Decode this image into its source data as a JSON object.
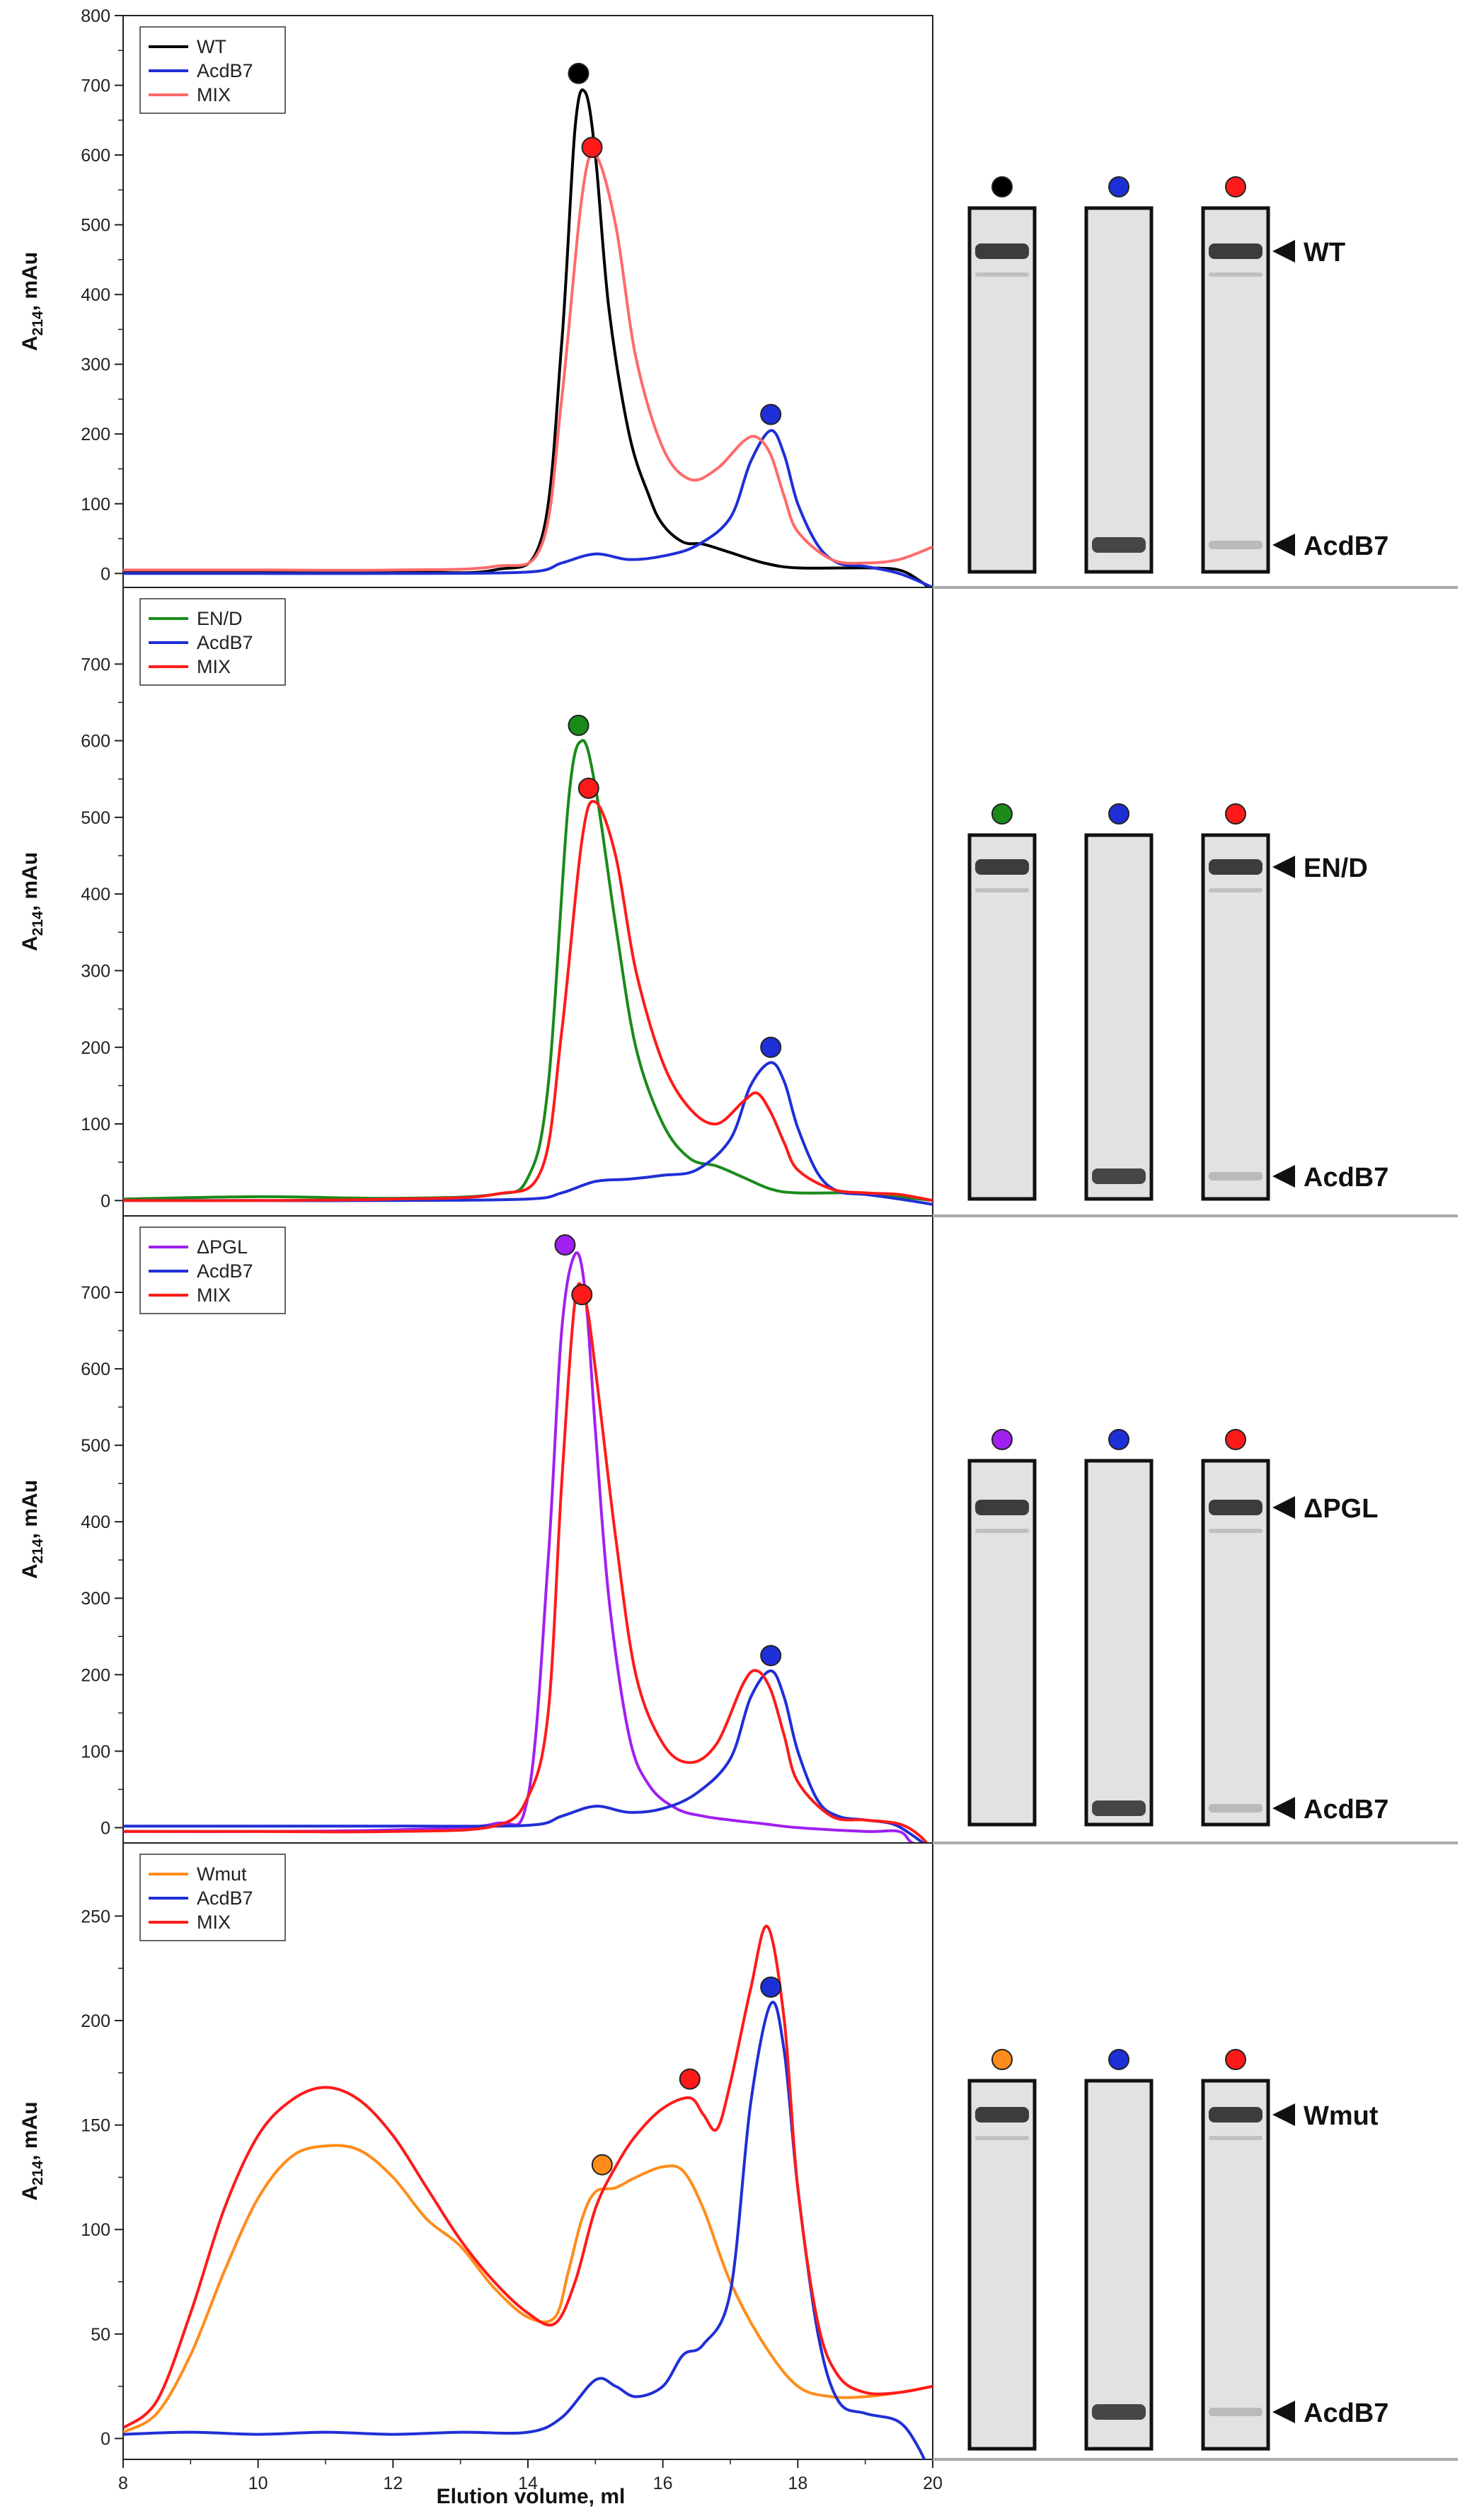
{
  "figure": {
    "xlabel": "Elution volume, ml",
    "ylabel_main": "A",
    "ylabel_sub": "214",
    "ylabel_rest": ", mAu"
  },
  "colors": {
    "black": "#000000",
    "blue": "#1f2fd6",
    "red": "#ff1a1a",
    "salmon": "#ff6a6a",
    "green": "#1a8a1a",
    "purple": "#a020f0",
    "orange": "#ff8c1a"
  },
  "chart_data": [
    {
      "type": "line",
      "panel": "WT",
      "xlim": [
        8,
        20
      ],
      "ylim": [
        -20,
        800
      ],
      "yticks": [
        0,
        100,
        200,
        300,
        400,
        500,
        600,
        700,
        800
      ],
      "xticks": [
        8,
        10,
        12,
        14,
        16,
        18,
        20
      ],
      "xlabel": "",
      "ylabel": "A214, mAu",
      "legend": {
        "position": "top-left",
        "entries": [
          "WT",
          "AcdB7",
          "MIX"
        ]
      },
      "series": [
        {
          "name": "WT",
          "color": "#000000",
          "x": [
            8,
            10,
            12,
            13.5,
            14.2,
            14.5,
            14.7,
            14.85,
            15.0,
            15.2,
            15.5,
            15.8,
            16.0,
            16.3,
            16.6,
            17.0,
            17.5,
            18.0,
            19.0,
            19.5,
            19.8,
            20
          ],
          "y": [
            3,
            3,
            3,
            5,
            50,
            330,
            640,
            690,
            600,
            380,
            200,
            110,
            70,
            45,
            42,
            30,
            15,
            8,
            8,
            5,
            -10,
            -25
          ]
        },
        {
          "name": "AcdB7",
          "color": "#1f2fd6",
          "x": [
            8,
            10,
            12,
            14,
            14.5,
            15.0,
            15.5,
            16.0,
            16.5,
            17.0,
            17.3,
            17.6,
            17.8,
            18.0,
            18.3,
            18.6,
            19.0,
            19.5,
            20
          ],
          "y": [
            0,
            0,
            0,
            2,
            15,
            28,
            20,
            25,
            40,
            80,
            160,
            205,
            170,
            100,
            40,
            15,
            10,
            0,
            -20
          ]
        },
        {
          "name": "MIX",
          "color": "#ff6a6a",
          "x": [
            8,
            10,
            12,
            13.5,
            14.2,
            14.5,
            14.8,
            15.0,
            15.3,
            15.6,
            16.0,
            16.4,
            16.8,
            17.2,
            17.4,
            17.6,
            17.8,
            18.0,
            18.5,
            19.0,
            19.5,
            20
          ],
          "y": [
            5,
            5,
            5,
            10,
            40,
            250,
            540,
            600,
            500,
            310,
            180,
            135,
            150,
            190,
            195,
            170,
            110,
            60,
            20,
            15,
            20,
            38
          ]
        }
      ],
      "markers": [
        {
          "series": "WT",
          "x": 14.75,
          "y": 717,
          "color": "#000000"
        },
        {
          "series": "MIX",
          "x": 14.95,
          "y": 611,
          "color": "#ff1a1a"
        },
        {
          "series": "AcdB7",
          "x": 17.6,
          "y": 228,
          "color": "#1f2fd6"
        }
      ]
    },
    {
      "type": "line",
      "panel": "EN/D",
      "xlim": [
        8,
        20
      ],
      "ylim": [
        -20,
        800
      ],
      "yticks": [
        0,
        100,
        200,
        300,
        400,
        500,
        600,
        700
      ],
      "xticks": [
        8,
        10,
        12,
        14,
        16,
        18,
        20
      ],
      "xlabel": "",
      "ylabel": "A214, mAu",
      "legend": {
        "position": "top-left",
        "entries": [
          "EN/D",
          "AcdB7",
          "MIX"
        ]
      },
      "series": [
        {
          "name": "EN/D",
          "color": "#1a8a1a",
          "x": [
            8,
            10,
            12,
            13.5,
            14.0,
            14.3,
            14.6,
            14.8,
            15.0,
            15.3,
            15.6,
            16.0,
            16.4,
            16.8,
            17.2,
            17.6,
            18.0,
            19.0,
            19.5,
            20
          ],
          "y": [
            2,
            5,
            3,
            8,
            30,
            150,
            520,
            600,
            540,
            360,
            200,
            100,
            55,
            45,
            30,
            15,
            10,
            10,
            5,
            0
          ]
        },
        {
          "name": "AcdB7",
          "color": "#1f2fd6",
          "x": [
            8,
            10,
            12,
            14,
            14.5,
            15.0,
            15.5,
            16.0,
            16.5,
            17.0,
            17.3,
            17.6,
            17.8,
            18.0,
            18.3,
            18.6,
            19.0,
            19.5,
            20
          ],
          "y": [
            0,
            0,
            0,
            2,
            10,
            25,
            28,
            33,
            40,
            80,
            150,
            180,
            155,
            95,
            35,
            12,
            8,
            2,
            -5
          ]
        },
        {
          "name": "MIX",
          "color": "#ff1a1a",
          "x": [
            8,
            10,
            12,
            13.5,
            14.2,
            14.5,
            14.8,
            15.0,
            15.3,
            15.6,
            16.0,
            16.4,
            16.8,
            17.2,
            17.4,
            17.6,
            17.8,
            18.0,
            18.5,
            19.0,
            19.5,
            20
          ],
          "y": [
            0,
            0,
            2,
            8,
            40,
            220,
            470,
            520,
            450,
            300,
            180,
            120,
            100,
            130,
            140,
            115,
            75,
            40,
            15,
            10,
            8,
            0
          ]
        }
      ],
      "markers": [
        {
          "series": "EN/D",
          "x": 14.75,
          "y": 620,
          "color": "#1a8a1a"
        },
        {
          "series": "MIX",
          "x": 14.9,
          "y": 538,
          "color": "#ff1a1a"
        },
        {
          "series": "AcdB7",
          "x": 17.6,
          "y": 200,
          "color": "#1f2fd6"
        }
      ]
    },
    {
      "type": "line",
      "panel": "ΔPGL",
      "xlim": [
        8,
        20
      ],
      "ylim": [
        -20,
        800
      ],
      "yticks": [
        0,
        100,
        200,
        300,
        400,
        500,
        600,
        700
      ],
      "xticks": [
        8,
        10,
        12,
        14,
        16,
        18,
        20
      ],
      "xlabel": "",
      "ylabel": "A214, mAu",
      "legend": {
        "position": "top-left",
        "entries": [
          "ΔPGL",
          "AcdB7",
          "MIX"
        ]
      },
      "series": [
        {
          "name": "ΔPGL",
          "color": "#a020f0",
          "x": [
            8,
            10,
            12,
            13.5,
            14.0,
            14.3,
            14.5,
            14.7,
            14.85,
            15.0,
            15.2,
            15.5,
            15.8,
            16.2,
            16.6,
            17.0,
            17.5,
            18.0,
            19.0,
            19.5,
            19.7,
            20
          ],
          "y": [
            -5,
            -5,
            -3,
            5,
            40,
            350,
            650,
            750,
            700,
            520,
            300,
            120,
            55,
            25,
            15,
            10,
            5,
            0,
            -5,
            -5,
            -20,
            -25
          ]
        },
        {
          "name": "AcdB7",
          "color": "#1f2fd6",
          "x": [
            8,
            10,
            12,
            14,
            14.5,
            15.0,
            15.5,
            16.0,
            16.5,
            17.0,
            17.3,
            17.6,
            17.8,
            18.0,
            18.3,
            18.6,
            19.0,
            19.4,
            19.7,
            20
          ],
          "y": [
            2,
            2,
            2,
            3,
            15,
            28,
            20,
            25,
            45,
            90,
            170,
            205,
            170,
            100,
            35,
            15,
            10,
            5,
            -10,
            -30
          ]
        },
        {
          "name": "MIX",
          "color": "#ff1a1a",
          "x": [
            8,
            10,
            12,
            13.5,
            14.0,
            14.3,
            14.5,
            14.7,
            14.85,
            15.0,
            15.3,
            15.6,
            16.0,
            16.4,
            16.8,
            17.2,
            17.4,
            17.6,
            17.8,
            18.0,
            18.5,
            19.0,
            19.5,
            19.8,
            20
          ],
          "y": [
            -5,
            -5,
            -5,
            2,
            40,
            150,
            450,
            690,
            690,
            600,
            380,
            200,
            110,
            85,
            110,
            190,
            205,
            180,
            120,
            60,
            15,
            10,
            5,
            -10,
            -30
          ]
        }
      ],
      "markers": [
        {
          "series": "ΔPGL",
          "x": 14.55,
          "y": 762,
          "color": "#a020f0"
        },
        {
          "series": "MIX",
          "x": 14.8,
          "y": 697,
          "color": "#ff1a1a"
        },
        {
          "series": "AcdB7",
          "x": 17.6,
          "y": 225,
          "color": "#1f2fd6"
        }
      ]
    },
    {
      "type": "line",
      "panel": "Wmut",
      "xlim": [
        8,
        20
      ],
      "ylim": [
        -10,
        285
      ],
      "yticks": [
        0,
        50,
        100,
        150,
        200,
        250
      ],
      "xticks": [
        8,
        10,
        12,
        14,
        16,
        18,
        20
      ],
      "xlabel": "Elution volume, ml",
      "ylabel": "A214, mAu",
      "legend": {
        "position": "top-left",
        "entries": [
          "Wmut",
          "AcdB7",
          "MIX"
        ]
      },
      "series": [
        {
          "name": "Wmut",
          "color": "#ff8c1a",
          "x": [
            8,
            8.5,
            9.0,
            9.5,
            10.0,
            10.5,
            11.0,
            11.5,
            12.0,
            12.5,
            13.0,
            13.5,
            14.0,
            14.4,
            14.6,
            14.8,
            15.0,
            15.3,
            15.6,
            16.0,
            16.3,
            16.6,
            17.0,
            17.5,
            18.0,
            18.5,
            19.0,
            19.5,
            20
          ],
          "y": [
            3,
            12,
            40,
            80,
            115,
            135,
            140,
            138,
            125,
            105,
            92,
            72,
            58,
            58,
            80,
            105,
            118,
            120,
            125,
            130,
            128,
            110,
            75,
            45,
            25,
            20,
            20,
            22,
            25
          ]
        },
        {
          "name": "AcdB7",
          "color": "#1f2fd6",
          "x": [
            8,
            9,
            10,
            11,
            12,
            13,
            14,
            14.5,
            15.0,
            15.3,
            15.6,
            16.0,
            16.3,
            16.6,
            17.0,
            17.3,
            17.6,
            17.8,
            18.0,
            18.3,
            18.6,
            19.0,
            19.5,
            19.8,
            20
          ],
          "y": [
            2,
            3,
            2,
            3,
            2,
            3,
            3,
            10,
            28,
            25,
            20,
            25,
            40,
            45,
            70,
            160,
            208,
            185,
            120,
            50,
            18,
            12,
            8,
            -5,
            -20
          ]
        },
        {
          "name": "MIX",
          "color": "#ff1a1a",
          "x": [
            8,
            8.5,
            9.0,
            9.5,
            10.0,
            10.5,
            11.0,
            11.5,
            12.0,
            12.5,
            13.0,
            13.5,
            14.0,
            14.4,
            14.7,
            15.0,
            15.3,
            15.6,
            16.0,
            16.4,
            16.6,
            16.8,
            17.0,
            17.3,
            17.55,
            17.8,
            18.0,
            18.3,
            18.6,
            19.0,
            19.5,
            20
          ],
          "y": [
            5,
            18,
            60,
            110,
            145,
            162,
            168,
            162,
            145,
            120,
            95,
            75,
            60,
            55,
            75,
            110,
            130,
            145,
            158,
            163,
            155,
            148,
            170,
            215,
            245,
            200,
            120,
            55,
            30,
            22,
            22,
            25
          ]
        }
      ],
      "markers": [
        {
          "series": "Wmut",
          "x": 15.1,
          "y": 131,
          "color": "#ff8c1a"
        },
        {
          "series": "MIX",
          "x": 16.4,
          "y": 172,
          "color": "#ff1a1a"
        },
        {
          "series": "AcdB7",
          "x": 17.6,
          "y": 216,
          "color": "#1f2fd6"
        }
      ]
    }
  ],
  "gels": [
    {
      "upper_label": "WT",
      "lower_label": "AcdB7",
      "lane_colors": [
        "#000000",
        "#1f2fd6",
        "#ff1a1a"
      ]
    },
    {
      "upper_label": "EN/D",
      "lower_label": "AcdB7",
      "lane_colors": [
        "#1a8a1a",
        "#1f2fd6",
        "#ff1a1a"
      ]
    },
    {
      "upper_label": "ΔPGL",
      "lower_label": "AcdB7",
      "lane_colors": [
        "#a020f0",
        "#1f2fd6",
        "#ff1a1a"
      ]
    },
    {
      "upper_label": "Wmut",
      "lower_label": "AcdB7",
      "lane_colors": [
        "#ff8c1a",
        "#1f2fd6",
        "#ff1a1a"
      ]
    }
  ]
}
